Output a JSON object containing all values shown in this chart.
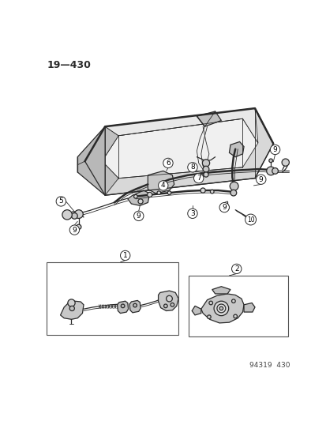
{
  "title_text": "19—430",
  "footer_text": "94319  430",
  "background_color": "#ffffff",
  "line_color": "#2a2a2a",
  "label_color": "#000000",
  "fig_width": 4.14,
  "fig_height": 5.33,
  "dpi": 100,
  "lw": 0.9,
  "lw_thick": 1.8,
  "lw_thin": 0.6,
  "part_circle_r": 8,
  "part_fontsize": 6.5
}
